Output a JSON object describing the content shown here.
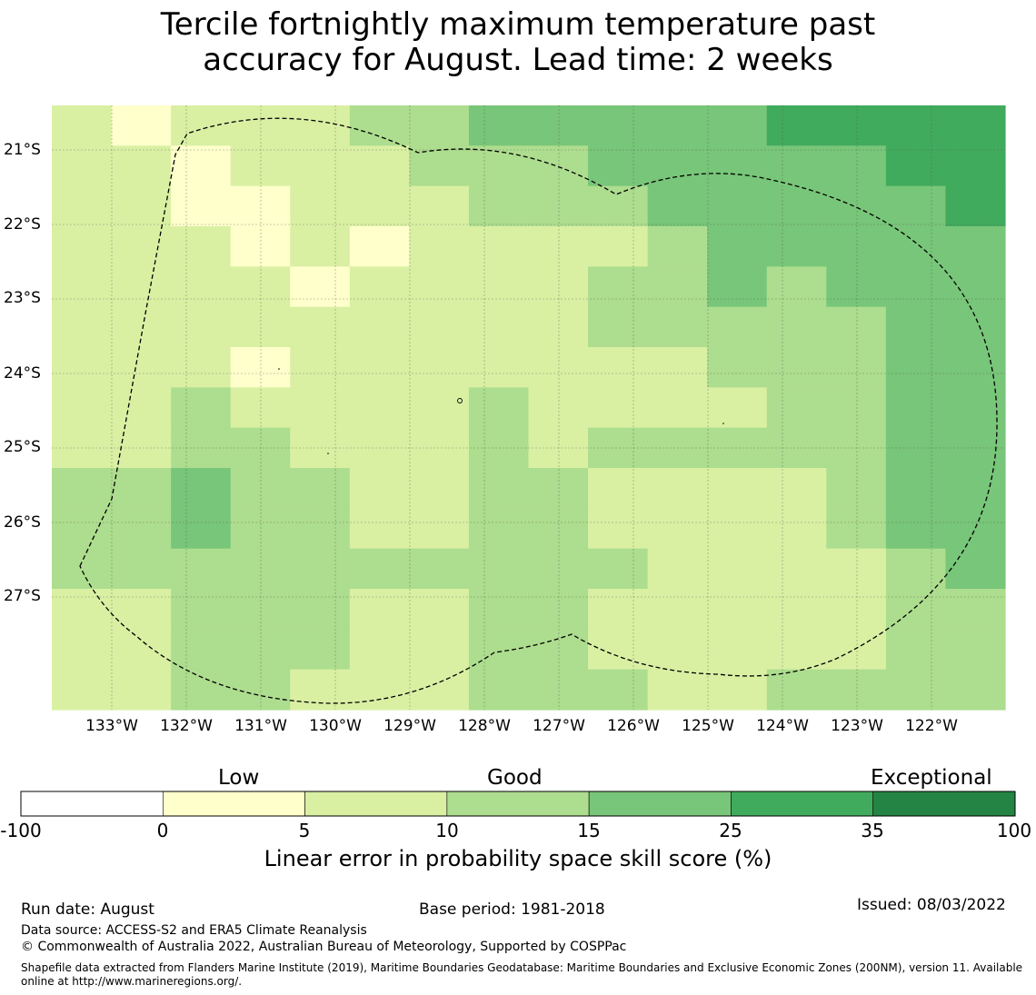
{
  "title": {
    "line1": "Tercile fortnightly maximum temperature past",
    "line2": "accuracy for August. Lead time: 2 weeks"
  },
  "map": {
    "lat_labels": [
      "21°S",
      "22°S",
      "23°S",
      "24°S",
      "25°S",
      "26°S",
      "27°S"
    ],
    "lon_labels": [
      "133°W",
      "132°W",
      "131°W",
      "130°W",
      "129°W",
      "128°W",
      "127°W",
      "126°W",
      "125°W",
      "124°W",
      "123°W",
      "122°W"
    ],
    "bin_colors": [
      "#ffffff",
      "#ffffcc",
      "#d9f0a3",
      "#addd8e",
      "#78c679",
      "#41ab5d",
      "#238443"
    ],
    "grid_bins": [
      [
        2,
        1,
        2,
        2,
        2,
        3,
        3,
        4,
        4,
        4,
        4,
        4,
        5,
        5,
        5,
        5
      ],
      [
        2,
        2,
        1,
        2,
        2,
        2,
        3,
        3,
        3,
        4,
        4,
        4,
        4,
        4,
        5,
        5
      ],
      [
        2,
        2,
        1,
        1,
        2,
        2,
        2,
        3,
        3,
        3,
        4,
        4,
        4,
        4,
        4,
        5
      ],
      [
        2,
        2,
        2,
        1,
        2,
        1,
        2,
        2,
        2,
        2,
        3,
        4,
        4,
        4,
        4,
        4
      ],
      [
        2,
        2,
        2,
        2,
        1,
        2,
        2,
        2,
        2,
        3,
        3,
        4,
        3,
        4,
        4,
        4
      ],
      [
        2,
        2,
        2,
        2,
        2,
        2,
        2,
        2,
        2,
        3,
        3,
        3,
        3,
        3,
        4,
        4
      ],
      [
        2,
        2,
        2,
        1,
        2,
        2,
        2,
        2,
        2,
        2,
        2,
        3,
        3,
        3,
        4,
        4
      ],
      [
        2,
        2,
        3,
        2,
        2,
        2,
        2,
        3,
        2,
        2,
        2,
        2,
        3,
        3,
        4,
        4
      ],
      [
        2,
        2,
        3,
        3,
        2,
        2,
        2,
        3,
        2,
        3,
        3,
        3,
        3,
        3,
        4,
        4
      ],
      [
        3,
        3,
        4,
        3,
        3,
        2,
        2,
        3,
        3,
        2,
        2,
        2,
        2,
        3,
        4,
        4
      ],
      [
        3,
        3,
        4,
        3,
        3,
        2,
        2,
        3,
        3,
        2,
        2,
        2,
        2,
        3,
        4,
        4
      ],
      [
        3,
        3,
        3,
        3,
        3,
        3,
        3,
        3,
        3,
        3,
        2,
        2,
        2,
        2,
        3,
        4
      ],
      [
        2,
        2,
        3,
        3,
        3,
        2,
        2,
        3,
        3,
        2,
        2,
        2,
        2,
        2,
        3,
        3
      ],
      [
        2,
        2,
        3,
        3,
        3,
        2,
        2,
        3,
        3,
        2,
        2,
        2,
        2,
        2,
        3,
        3
      ],
      [
        2,
        2,
        3,
        3,
        2,
        2,
        2,
        3,
        3,
        3,
        2,
        2,
        3,
        3,
        3,
        3
      ]
    ]
  },
  "colorbar": {
    "categories": [
      "Low",
      "Good",
      "Exceptional"
    ],
    "ticks": [
      "-100",
      "0",
      "5",
      "10",
      "15",
      "25",
      "35",
      "100"
    ],
    "label": "Linear error in probability space skill score (%)"
  },
  "footer": {
    "run_date": "Run date: August",
    "base_period": "Base period: 1981-2018",
    "issued": "Issued: 08/03/2022",
    "data_source": "Data source: ACCESS-S2 and ERA5 Climate Reanalysis",
    "copyright": "© Commonwealth of Australia 2022, Australian Bureau of Meteorology, Supported by COSPPac",
    "shapefile": "Shapefile data extracted from Flanders Marine Institute (2019), Maritime Boundaries Geodatabase: Maritime Boundaries and Exclusive Economic Zones (200NM), version 11. Available online at http://www.marineregions.org/."
  }
}
